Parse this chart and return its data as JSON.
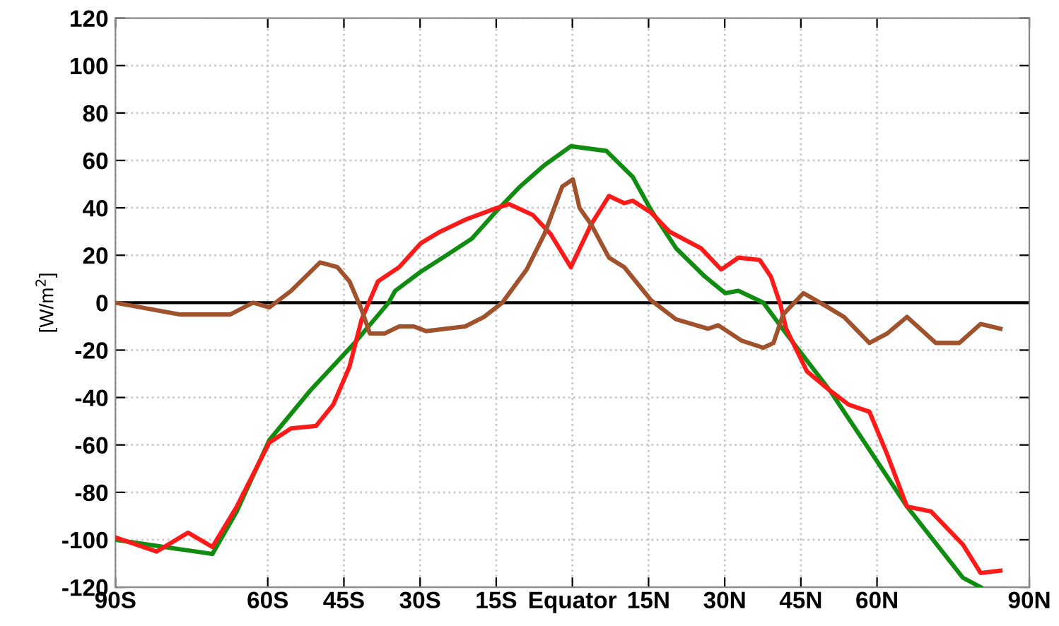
{
  "chart_data": {
    "type": "line",
    "ylabel": "[W/m$^{2}$]",
    "xlim": [
      -90,
      90
    ],
    "ylim": [
      -120,
      120
    ],
    "xticks": [
      {
        "value": -90,
        "label": "90S"
      },
      {
        "value": -60,
        "label": "60S"
      },
      {
        "value": -45,
        "label": "45S"
      },
      {
        "value": -30,
        "label": "30S"
      },
      {
        "value": -15,
        "label": "15S"
      },
      {
        "value": 0,
        "label": "Equator"
      },
      {
        "value": 15,
        "label": "15N"
      },
      {
        "value": 30,
        "label": "30N"
      },
      {
        "value": 45,
        "label": "45N"
      },
      {
        "value": 60,
        "label": "60N"
      },
      {
        "value": 90,
        "label": "90N"
      }
    ],
    "yticks": [
      -120,
      -100,
      -80,
      -60,
      -40,
      -20,
      0,
      20,
      40,
      60,
      80,
      100,
      120
    ],
    "grid": true,
    "ref_lines": [
      {
        "axis": "y",
        "value": 0,
        "color": "#000000"
      }
    ],
    "series": [
      {
        "color": "#108c10",
        "x": [
          -90,
          -70.9,
          -66.1,
          -59.7,
          -51.6,
          -42.9,
          -36.2,
          -34.9,
          -29.9,
          -24.8,
          -19.8,
          -14.8,
          -10.3,
          -5.5,
          -0.3,
          6.7,
          11.9,
          15.5,
          20.4,
          26.1,
          30.1,
          32.7,
          37.6,
          42.1,
          50.7,
          58.5,
          65.9,
          76.9,
          80.4
        ],
        "values": [
          -100,
          -106,
          -88,
          -58,
          -37,
          -17,
          0,
          5,
          13,
          20,
          27,
          39,
          49,
          58,
          66,
          64,
          53,
          39,
          23,
          11,
          4,
          5,
          0,
          -13,
          -37,
          -62,
          -86,
          -116,
          -120
        ]
      },
      {
        "color": "#ff1a1a",
        "x": [
          -90,
          -81.9,
          -75.7,
          -70.9,
          -66.1,
          -59.7,
          -55.4,
          -50.5,
          -47.1,
          -43.9,
          -41.5,
          -38.3,
          -34.1,
          -29.9,
          -26.0,
          -21.1,
          -14.8,
          -12.5,
          -7.8,
          -4.3,
          -0.3,
          3.7,
          7.2,
          10.2,
          11.9,
          15.5,
          19.1,
          25.3,
          29.3,
          32.7,
          36.9,
          39.1,
          41.0,
          42.1,
          46.2,
          50.7,
          54.4,
          58.5,
          62.0,
          65.9,
          70.6,
          76.9,
          80.4,
          84.3
        ],
        "values": [
          -99,
          -105,
          -97,
          -103,
          -86,
          -59,
          -53,
          -52,
          -43,
          -27,
          -7,
          9,
          15,
          25,
          30,
          35,
          40,
          41.6,
          37,
          29,
          15,
          33,
          45,
          42,
          43,
          38,
          30,
          23,
          14,
          19,
          18,
          11,
          -1,
          -11,
          -29,
          -37,
          -43,
          -46,
          -64,
          -86,
          -88,
          -102,
          -114,
          -113
        ]
      },
      {
        "color": "#a0522d",
        "x": [
          -90,
          -77.2,
          -67.4,
          -62.9,
          -59.7,
          -55.4,
          -49.7,
          -46.3,
          -43.9,
          -41.5,
          -39.9,
          -37.0,
          -34.1,
          -31.3,
          -28.8,
          -21.1,
          -17.4,
          -13.8,
          -9.0,
          -5.5,
          -2.0,
          0.1,
          1.4,
          3.7,
          7.2,
          10.2,
          15.5,
          20.4,
          26.7,
          28.7,
          33.3,
          37.6,
          39.6,
          41.5,
          45.5,
          49.6,
          53.5,
          58.5,
          62.0,
          65.9,
          71.6,
          76.2,
          80.4,
          84.3
        ],
        "values": [
          0,
          -5,
          -5,
          0,
          -2,
          5,
          17,
          15,
          9,
          -3,
          -13,
          -13,
          -10,
          -10,
          -12,
          -10,
          -6,
          0,
          14,
          29,
          49,
          52,
          40,
          33,
          19,
          15,
          1,
          -7,
          -11,
          -9.5,
          -16,
          -19,
          -17,
          -5,
          4,
          -1,
          -6,
          -17,
          -13,
          -6,
          -17,
          -17,
          -9,
          -11
        ]
      }
    ]
  }
}
